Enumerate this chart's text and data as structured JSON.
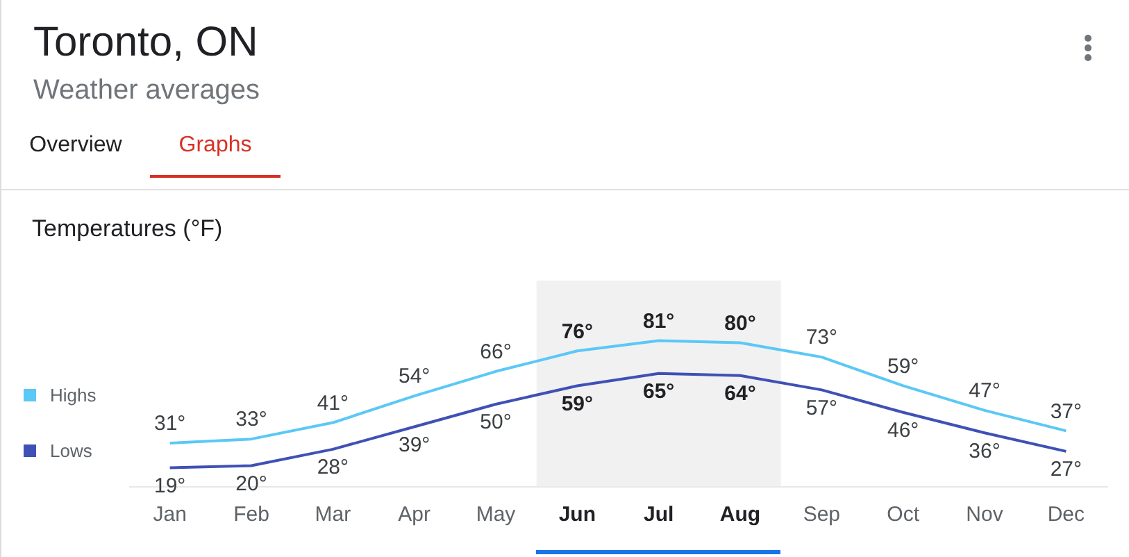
{
  "chart_data": {
    "type": "line",
    "title": "Toronto, ON",
    "subtitle": "Weather averages",
    "ylabel": "Temperatures (°F)",
    "annotations": [
      "Overview",
      "Graphs"
    ],
    "categories": [
      "Jan",
      "Feb",
      "Mar",
      "Apr",
      "May",
      "Jun",
      "Jul",
      "Aug",
      "Sep",
      "Oct",
      "Nov",
      "Dec"
    ],
    "series": [
      {
        "name": "Highs",
        "color": "#5bc8f5",
        "values": [
          31,
          33,
          41,
          54,
          66,
          76,
          81,
          80,
          73,
          59,
          47,
          37
        ],
        "value_labels": [
          "31°",
          "33°",
          "41°",
          "54°",
          "66°",
          "76°",
          "81°",
          "80°",
          "73°",
          "59°",
          "47°",
          "37°"
        ]
      },
      {
        "name": "Lows",
        "color": "#3f51b5",
        "values": [
          19,
          20,
          28,
          39,
          50,
          59,
          65,
          64,
          57,
          46,
          36,
          27
        ],
        "value_labels": [
          "19°",
          "20°",
          "28°",
          "39°",
          "50°",
          "59°",
          "65°",
          "64°",
          "57°",
          "46°",
          "36°",
          "27°"
        ]
      }
    ],
    "bands": [
      {
        "axis": "x",
        "from": "Jun",
        "to": "Aug",
        "color": "#f1f1f1"
      }
    ],
    "legend": "left",
    "grid": false,
    "marker": "none",
    "line_style": "solid",
    "tick_labels": "x"
  }
}
